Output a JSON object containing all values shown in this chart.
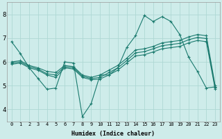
{
  "xlabel": "Humidex (Indice chaleur)",
  "ylabel": "",
  "bg_color": "#ceecea",
  "line_color": "#1a7a6e",
  "grid_color": "#aed8d4",
  "xlim": [
    -0.5,
    23.5
  ],
  "ylim": [
    3.5,
    8.5
  ],
  "xticks": [
    0,
    1,
    2,
    3,
    4,
    5,
    6,
    7,
    8,
    9,
    10,
    11,
    12,
    13,
    14,
    15,
    16,
    17,
    18,
    19,
    20,
    21,
    22,
    23
  ],
  "yticks": [
    4,
    5,
    6,
    7,
    8
  ],
  "line1_x": [
    0,
    1,
    2,
    3,
    4,
    5,
    6,
    7,
    8,
    9,
    10,
    11,
    12,
    13,
    14,
    15,
    16,
    17,
    18,
    19,
    20,
    21,
    22,
    23
  ],
  "line1_y": [
    6.85,
    6.35,
    5.75,
    5.3,
    4.85,
    4.9,
    6.0,
    5.95,
    3.7,
    4.25,
    5.45,
    5.45,
    5.75,
    6.6,
    7.1,
    7.95,
    7.7,
    7.9,
    7.7,
    7.15,
    6.2,
    5.6,
    4.9,
    4.95
  ],
  "line2_x": [
    0,
    1,
    2,
    3,
    4,
    5,
    6,
    7,
    8,
    9,
    10,
    11,
    12,
    13,
    14,
    15,
    16,
    17,
    18,
    19,
    20,
    21,
    22,
    23
  ],
  "line2_y": [
    6.0,
    6.05,
    5.85,
    5.75,
    5.6,
    5.55,
    5.85,
    5.8,
    5.45,
    5.35,
    5.45,
    5.65,
    5.85,
    6.15,
    6.5,
    6.55,
    6.65,
    6.8,
    6.85,
    6.9,
    7.05,
    7.15,
    7.1,
    5.0
  ],
  "line3_x": [
    0,
    1,
    2,
    3,
    4,
    5,
    6,
    7,
    8,
    9,
    10,
    11,
    12,
    13,
    14,
    15,
    16,
    17,
    18,
    19,
    20,
    21,
    22,
    23
  ],
  "line3_y": [
    5.95,
    6.0,
    5.8,
    5.7,
    5.5,
    5.45,
    5.8,
    5.75,
    5.4,
    5.3,
    5.35,
    5.55,
    5.75,
    6.05,
    6.38,
    6.43,
    6.55,
    6.68,
    6.73,
    6.78,
    6.93,
    7.03,
    6.98,
    4.92
  ],
  "line4_x": [
    0,
    1,
    2,
    3,
    4,
    5,
    6,
    7,
    8,
    9,
    10,
    11,
    12,
    13,
    14,
    15,
    16,
    17,
    18,
    19,
    20,
    21,
    22,
    23
  ],
  "line4_y": [
    5.9,
    5.95,
    5.75,
    5.65,
    5.45,
    5.35,
    5.75,
    5.7,
    5.35,
    5.25,
    5.28,
    5.45,
    5.65,
    5.95,
    6.25,
    6.3,
    6.42,
    6.55,
    6.6,
    6.65,
    6.8,
    6.9,
    6.85,
    4.85
  ]
}
